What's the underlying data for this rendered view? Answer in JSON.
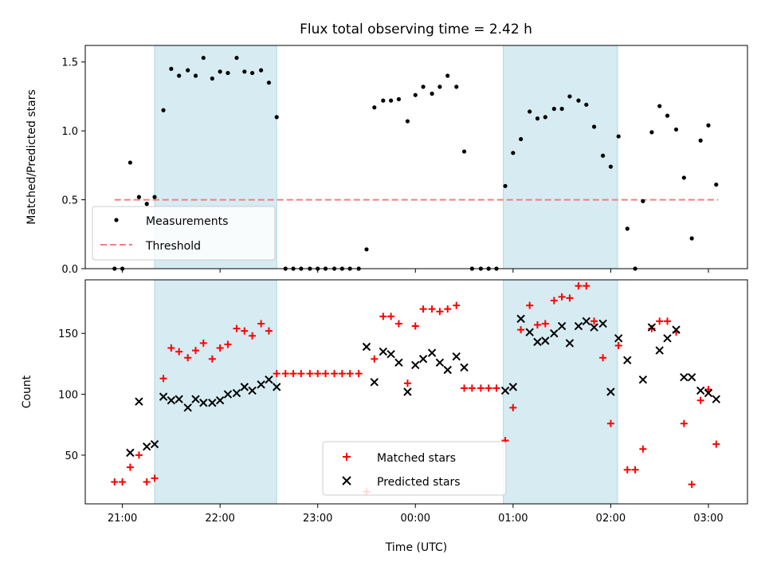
{
  "chart_data": [
    {
      "type": "scatter",
      "title": "Flux total observing time = 2.42 h",
      "xlabel": "",
      "ylabel": "Matched/Predicted stars",
      "ylim": [
        0,
        1.62
      ],
      "yticks": [
        0.0,
        0.5,
        1.0,
        1.5
      ],
      "ytick_labels": [
        "0.0",
        "0.5",
        "1.0",
        "1.5"
      ],
      "xlim_hours": [
        20.62,
        27.4
      ],
      "xticks_hours": [
        21,
        22,
        23,
        24,
        25,
        26,
        27
      ],
      "xtick_labels": [],
      "shaded_intervals_hours": [
        [
          21.33,
          22.58
        ],
        [
          24.9,
          26.07
        ]
      ],
      "threshold": {
        "name": "Threshold",
        "value": 0.5,
        "x_range_hours": [
          20.92,
          27.1
        ],
        "color": "#f08080"
      },
      "legend": {
        "placement": "lower-left",
        "entries": [
          "Measurements",
          "Threshold"
        ]
      },
      "series": [
        {
          "name": "Measurements",
          "color": "#000000",
          "x_hours": [
            20.92,
            21.0,
            21.08,
            21.17,
            21.25,
            21.33,
            21.42,
            21.5,
            21.58,
            21.67,
            21.75,
            21.83,
            21.92,
            22.0,
            22.08,
            22.17,
            22.25,
            22.33,
            22.42,
            22.5,
            22.58,
            22.67,
            22.75,
            22.83,
            22.92,
            23.0,
            23.08,
            23.17,
            23.25,
            23.33,
            23.42,
            23.5,
            23.58,
            23.67,
            23.75,
            23.83,
            23.92,
            24.0,
            24.08,
            24.17,
            24.25,
            24.33,
            24.42,
            24.5,
            24.58,
            24.67,
            24.75,
            24.83,
            24.92,
            25.0,
            25.08,
            25.17,
            25.25,
            25.33,
            25.42,
            25.5,
            25.58,
            25.67,
            25.75,
            25.83,
            25.92,
            26.0,
            26.08,
            26.17,
            26.25,
            26.33,
            26.42,
            26.5,
            26.58,
            26.67,
            26.75,
            26.83,
            26.92,
            27.0,
            27.08
          ],
          "y": [
            0.0,
            0.0,
            0.77,
            0.52,
            0.47,
            0.52,
            1.15,
            1.45,
            1.4,
            1.44,
            1.4,
            1.53,
            1.38,
            1.43,
            1.42,
            1.53,
            1.43,
            1.42,
            1.44,
            1.35,
            1.1,
            0.0,
            0.0,
            0.0,
            0.0,
            0.0,
            0.0,
            0.0,
            0.0,
            0.0,
            0.0,
            0.14,
            1.17,
            1.22,
            1.22,
            1.23,
            1.07,
            1.26,
            1.32,
            1.27,
            1.32,
            1.4,
            1.32,
            0.85,
            0.0,
            0.0,
            0.0,
            0.0,
            0.6,
            0.84,
            0.94,
            1.14,
            1.09,
            1.1,
            1.16,
            1.16,
            1.25,
            1.22,
            1.19,
            1.03,
            0.82,
            0.74,
            0.96,
            0.29,
            0.0,
            0.49,
            0.99,
            1.18,
            1.11,
            1.01,
            0.66,
            0.22,
            0.93,
            1.04,
            0.61
          ]
        }
      ]
    },
    {
      "type": "scatter",
      "title": "",
      "xlabel": "Time (UTC)",
      "ylabel": "Count",
      "ylim": [
        10,
        194
      ],
      "yticks": [
        50,
        100,
        150
      ],
      "ytick_labels": [
        "50",
        "100",
        "150"
      ],
      "xlim_hours": [
        20.62,
        27.4
      ],
      "xticks_hours": [
        21,
        22,
        23,
        24,
        25,
        26,
        27
      ],
      "xtick_labels": [
        "21:00",
        "22:00",
        "23:00",
        "00:00",
        "01:00",
        "02:00",
        "03:00"
      ],
      "shaded_intervals_hours": [
        [
          21.33,
          22.58
        ],
        [
          24.9,
          26.07
        ]
      ],
      "legend": {
        "placement": "lower-center",
        "entries": [
          "Matched stars",
          "Predicted stars"
        ]
      },
      "series": [
        {
          "name": "Matched stars",
          "marker": "plus",
          "color": "#ff0000",
          "x_hours": [
            20.92,
            21.0,
            21.08,
            21.17,
            21.25,
            21.33,
            21.42,
            21.5,
            21.58,
            21.67,
            21.75,
            21.83,
            21.92,
            22.0,
            22.08,
            22.17,
            22.25,
            22.33,
            22.42,
            22.5,
            22.58,
            22.67,
            22.75,
            22.83,
            22.92,
            23.0,
            23.08,
            23.17,
            23.25,
            23.33,
            23.42,
            23.5,
            23.58,
            23.67,
            23.75,
            23.83,
            23.92,
            24.0,
            24.08,
            24.17,
            24.25,
            24.33,
            24.42,
            24.5,
            24.58,
            24.67,
            24.75,
            24.83,
            24.92,
            25.0,
            25.08,
            25.17,
            25.25,
            25.33,
            25.42,
            25.5,
            25.58,
            25.67,
            25.75,
            25.83,
            25.92,
            26.0,
            26.08,
            26.17,
            26.25,
            26.33,
            26.42,
            26.5,
            26.58,
            26.67,
            26.75,
            26.83,
            26.92,
            27.0,
            27.08
          ],
          "y": [
            28,
            28,
            40,
            50,
            28,
            31,
            113,
            138,
            135,
            130,
            136,
            142,
            129,
            138,
            141,
            154,
            152,
            148,
            158,
            152,
            117,
            117,
            117,
            117,
            117,
            117,
            117,
            117,
            117,
            117,
            117,
            20,
            129,
            164,
            164,
            158,
            109,
            156,
            170,
            170,
            168,
            170,
            173,
            105,
            105,
            105,
            105,
            105,
            62,
            89,
            153,
            173,
            157,
            158,
            177,
            180,
            179,
            189,
            189,
            160,
            130,
            76,
            140,
            38,
            38,
            55,
            154,
            160,
            160,
            151,
            76,
            26,
            95,
            104,
            59
          ]
        },
        {
          "name": "Predicted stars",
          "marker": "cross",
          "color": "#000000",
          "x_hours": [
            21.08,
            21.17,
            21.25,
            21.33,
            21.42,
            21.5,
            21.58,
            21.67,
            21.75,
            21.83,
            21.92,
            22.0,
            22.08,
            22.17,
            22.25,
            22.33,
            22.42,
            22.5,
            22.58,
            23.5,
            23.58,
            23.67,
            23.75,
            23.83,
            23.92,
            24.0,
            24.08,
            24.17,
            24.25,
            24.33,
            24.42,
            24.5,
            24.92,
            25.0,
            25.08,
            25.17,
            25.25,
            25.33,
            25.42,
            25.5,
            25.58,
            25.67,
            25.75,
            25.83,
            25.92,
            26.0,
            26.08,
            26.17,
            26.33,
            26.42,
            26.5,
            26.58,
            26.67,
            26.75,
            26.83,
            26.92,
            27.0,
            27.08
          ],
          "y": [
            52,
            94,
            57,
            59,
            98,
            95,
            96,
            89,
            96,
            93,
            93,
            95,
            100,
            101,
            106,
            103,
            108,
            112,
            106,
            139,
            110,
            135,
            133,
            126,
            102,
            124,
            129,
            134,
            126,
            120,
            131,
            122,
            103,
            106,
            162,
            151,
            143,
            144,
            150,
            156,
            142,
            156,
            160,
            155,
            158,
            102,
            146,
            128,
            112,
            155,
            136,
            146,
            153,
            114,
            114,
            103,
            101,
            96
          ]
        }
      ]
    }
  ]
}
